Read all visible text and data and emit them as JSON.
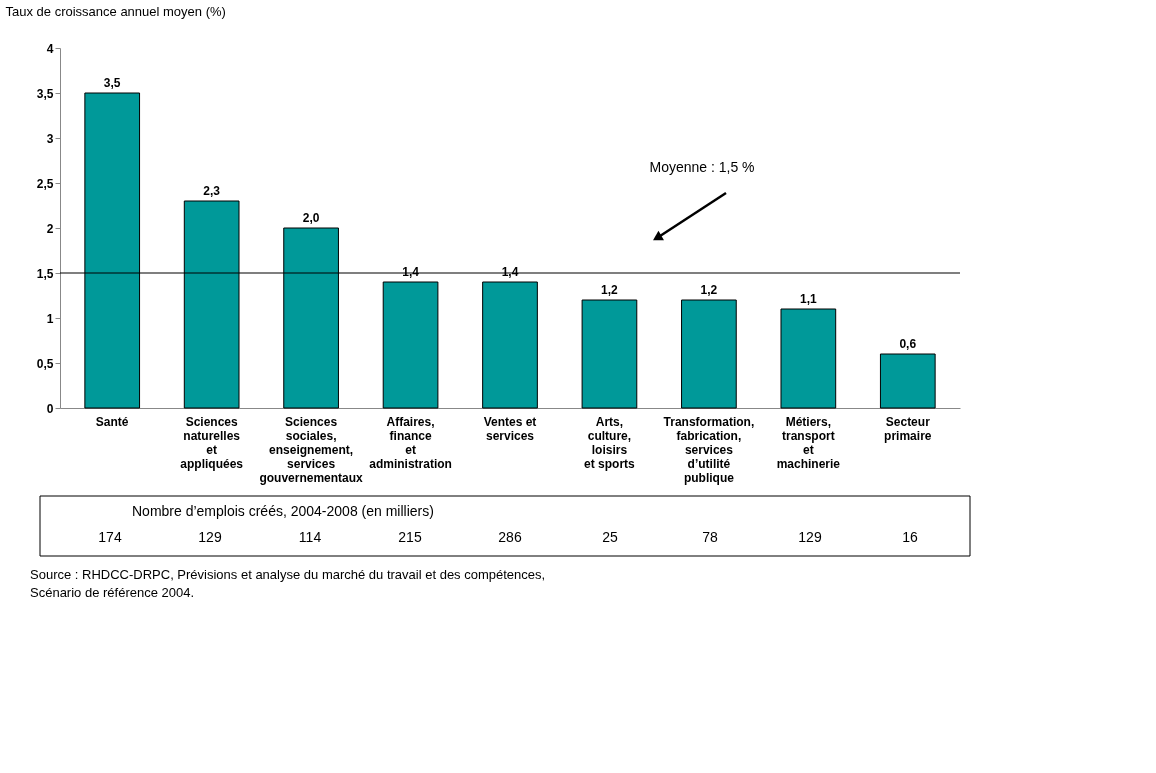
{
  "chart_data": [
    {
      "type": "bar",
      "ylabel": "Taux de croissance annuel moyen (%)",
      "categories": [
        "Santé",
        "Sciences\nnaturelles\net\nappliquées",
        "Sciences\nsociales,\nenseignement,\nservices\ngouvernementaux",
        "Affaires,\nfinance\net\nadministration",
        "Ventes et\nservices",
        "Arts,\nculture,\nloisirs\net sports",
        "Transformation,\nfabrication,\nservices\nd’utilité\npublique",
        "Métiers,\ntransport\net\nmachinerie",
        "Secteur\nprimaire"
      ],
      "values": [
        3.5,
        2.3,
        2.0,
        1.4,
        1.4,
        1.2,
        1.2,
        1.1,
        0.6
      ],
      "value_labels": [
        "3,5",
        "2,3",
        "2,0",
        "1,4",
        "1,4",
        "1,2",
        "1,2",
        "1,1",
        "0,6"
      ],
      "color": "#009999",
      "ylim": [
        0,
        4
      ],
      "yticks": [
        0,
        {
          "value": 0.5,
          "label": "0,5"
        },
        1,
        {
          "value": 1.5,
          "label": "1,5"
        },
        2,
        {
          "value": 2.5,
          "label": "2,5"
        },
        3,
        {
          "value": 3.5,
          "label": "3,5"
        },
        4
      ],
      "ref_lines": [
        {
          "axis": "y",
          "value": 1.5,
          "label": "Moyenne : 1,5 %",
          "color": "#000000"
        }
      ],
      "grid": false,
      "annotations": [
        "Source : RHDCC-DRPC, Prévisions et analyse du marché du travail et des compétences,\n        Scénario de référence 2004."
      ]
    },
    {
      "type": "other",
      "title": "Nombre d’emplois créés, 2004-2008 (en milliers)",
      "values": [
        174,
        129,
        114,
        215,
        286,
        25,
        78,
        129,
        16
      ],
      "data_labels": true
    }
  ]
}
